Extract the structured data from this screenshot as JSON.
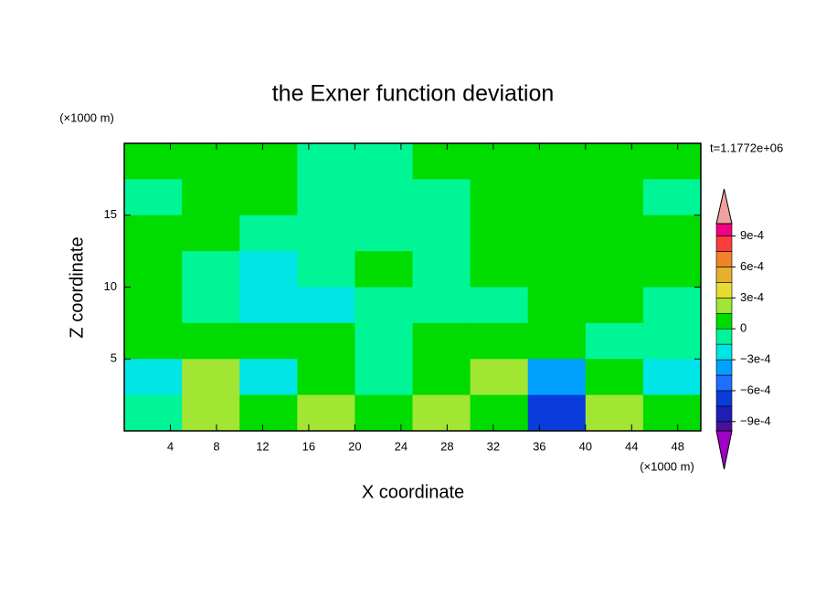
{
  "chart_data": {
    "type": "contour",
    "title": "the Exner function deviation",
    "x_label": "X coordinate",
    "y_label": "Z coordinate",
    "x_unit": "(×1000 m)",
    "y_unit": "(×1000 m)",
    "annotation": "t=1.1772e+06",
    "xlim": [
      0,
      50
    ],
    "xticks": [
      4,
      8,
      12,
      16,
      20,
      24,
      28,
      32,
      36,
      40,
      44,
      48
    ],
    "ylim": [
      0,
      20
    ],
    "yticks": [
      5,
      10,
      15
    ],
    "z": [
      [
        5e-05,
        5e-05,
        5e-05,
        -5e-05,
        -5e-05,
        5e-05,
        5e-05,
        5e-05,
        5e-05,
        5e-05
      ],
      [
        -5e-05,
        5e-05,
        5e-05,
        -5e-05,
        -5e-05,
        -5e-05,
        5e-05,
        5e-05,
        5e-05,
        -5e-05
      ],
      [
        5e-05,
        5e-05,
        -5e-05,
        -5e-05,
        -5e-05,
        -5e-05,
        5e-05,
        5e-05,
        5e-05,
        5e-05
      ],
      [
        5e-05,
        -5e-05,
        -0.0002,
        -5e-05,
        5e-05,
        -5e-05,
        5e-05,
        5e-05,
        5e-05,
        5e-05
      ],
      [
        5e-05,
        -5e-05,
        -0.0002,
        -0.0002,
        -5e-05,
        -5e-05,
        -5e-05,
        5e-05,
        5e-05,
        -5e-05
      ],
      [
        5e-05,
        5e-05,
        5e-05,
        5e-05,
        -5e-05,
        5e-05,
        5e-05,
        5e-05,
        -5e-05,
        -5e-05
      ],
      [
        -0.0002,
        0.0002,
        -0.0002,
        5e-05,
        -5e-05,
        5e-05,
        0.0002,
        -0.00035,
        5e-05,
        -0.0002
      ],
      [
        -5e-05,
        0.0002,
        5e-05,
        0.0002,
        5e-05,
        0.0002,
        5e-05,
        -0.00065,
        0.0002,
        5e-05
      ]
    ],
    "levels": [
      -0.00105,
      -0.0009,
      -0.00075,
      -0.0006,
      -0.00045,
      -0.0003,
      -0.00015,
      0,
      0.00015,
      0.0003,
      0.00045,
      0.0006,
      0.00075,
      0.0009,
      0.00105
    ],
    "colors": [
      "#4b0fa0",
      "#1e1eb4",
      "#0a3cdc",
      "#1e6eff",
      "#00a0ff",
      "#00e6e6",
      "#00f596",
      "#00dc00",
      "#a0e632",
      "#e6dc32",
      "#e6af2d",
      "#f08228",
      "#fa3c3c",
      "#f00082"
    ],
    "extend_colors": [
      "#a000c8",
      "#f0a0a0"
    ],
    "clim": [
      -0.00099,
      0.00102
    ],
    "cticks": [
      {
        "value": 0.0009,
        "label": "9e-4"
      },
      {
        "value": 0.0006,
        "label": "6e-4"
      },
      {
        "value": 0.0003,
        "label": "3e-4"
      },
      0,
      {
        "value": -0.0003,
        "label": "−3e-4"
      },
      {
        "value": -0.0006,
        "label": "−6e-4"
      },
      {
        "value": -0.0009,
        "label": "−9e-4"
      }
    ]
  }
}
